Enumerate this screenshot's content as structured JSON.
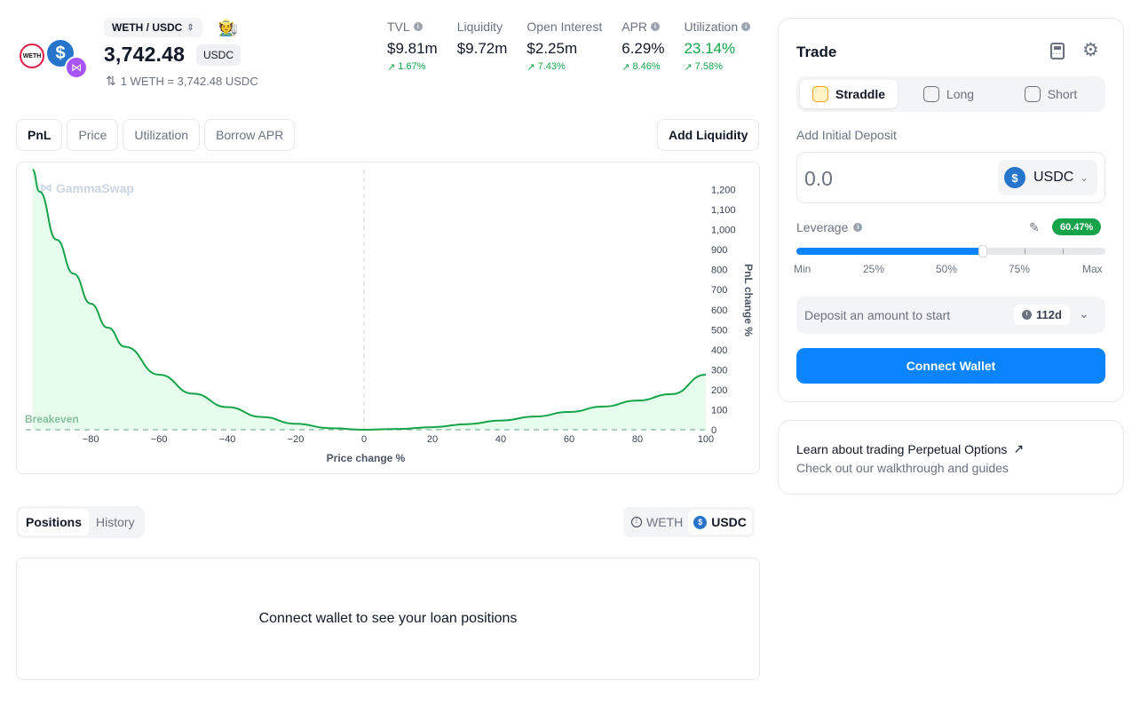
{
  "header": {
    "pair": "WETH / USDC",
    "price": "3,742.48",
    "price_unit": "USDC",
    "rate": "1 WETH = 3,742.48 USDC",
    "token_logo_labels": {
      "weth": "WETH",
      "usdc": "$"
    },
    "avatar_emoji": "🧑‍🌾",
    "stats": [
      {
        "label": "TVL",
        "value": "$9.81m",
        "change": "1.67%",
        "info": true
      },
      {
        "label": "Liquidity",
        "value": "$9.72m",
        "change": "",
        "info": false
      },
      {
        "label": "Open Interest",
        "value": "$2.25m",
        "change": "7.43%",
        "info": false
      },
      {
        "label": "APR",
        "value": "6.29%",
        "change": "8.46%",
        "info": true
      },
      {
        "label": "Utilization",
        "value": "23.14%",
        "change": "7.58%",
        "info": true,
        "value_color": "#16a34a"
      }
    ]
  },
  "chart_tabs": [
    "PnL",
    "Price",
    "Utilization",
    "Borrow APR"
  ],
  "add_liquidity_label": "Add Liquidity",
  "chart": {
    "watermark": "GammaSwap",
    "breakeven_label": "Breakeven"
  },
  "chart_data": {
    "type": "area",
    "title": "",
    "xlabel": "Price change %",
    "ylabel": "PnL change %",
    "xlim": [
      -99,
      100
    ],
    "ylim": [
      0,
      1300
    ],
    "x_ticks": [
      -80,
      -60,
      -40,
      -20,
      0,
      20,
      40,
      60,
      80,
      100
    ],
    "x_tick_labels": [
      "−80",
      "−60",
      "−40",
      "−20",
      "0",
      "20",
      "40",
      "60",
      "80",
      "100"
    ],
    "y_ticks": [
      0,
      100,
      200,
      300,
      400,
      500,
      600,
      700,
      800,
      900,
      1000,
      1100,
      1200
    ],
    "y_tick_labels": [
      "0",
      "100",
      "200",
      "300",
      "400",
      "500",
      "600",
      "700",
      "800",
      "900",
      "1,000",
      "1,100",
      "1,200"
    ],
    "series": [
      {
        "name": "PnL",
        "color": "#16a34a",
        "x": [
          -97,
          -95,
          -90,
          -85,
          -80,
          -75,
          -70,
          -60,
          -50,
          -40,
          -30,
          -20,
          -10,
          0,
          10,
          20,
          30,
          40,
          50,
          60,
          70,
          80,
          90,
          100
        ],
        "y": [
          1300,
          1190,
          950,
          780,
          630,
          510,
          415,
          275,
          180,
          113,
          64,
          30,
          8,
          0,
          4,
          13,
          28,
          46,
          66,
          89,
          116,
          146,
          178,
          275
        ]
      }
    ],
    "reference_lines": [
      {
        "axis": "x",
        "value": 0,
        "style": "dashed"
      },
      {
        "axis": "y",
        "value": 0,
        "style": "dashed",
        "label": "Breakeven"
      }
    ]
  },
  "positions": {
    "tabs": [
      "Positions",
      "History"
    ],
    "token_tabs": [
      "WETH",
      "USDC"
    ],
    "empty_message": "Connect wallet to see your loan positions"
  },
  "trade": {
    "title": "Trade",
    "modes": [
      "Straddle",
      "Long",
      "Short"
    ],
    "deposit_label": "Add Initial Deposit",
    "deposit_placeholder": "0.0",
    "token": "USDC",
    "leverage_label": "Leverage",
    "leverage_value": "60.47%",
    "leverage_fraction": 0.6047,
    "slider_labels": [
      "Min",
      "25%",
      "50%",
      "75%",
      "Max"
    ],
    "info_message": "Deposit an amount to start",
    "duration": "112d",
    "connect_label": "Connect Wallet"
  },
  "learn": {
    "title": "Learn about trading Perpetual Options",
    "subtitle": "Check out our walkthrough and guides"
  },
  "colors": {
    "accent": "#0a84ff",
    "positive": "#16a34a",
    "usdc": "#2775ca"
  }
}
